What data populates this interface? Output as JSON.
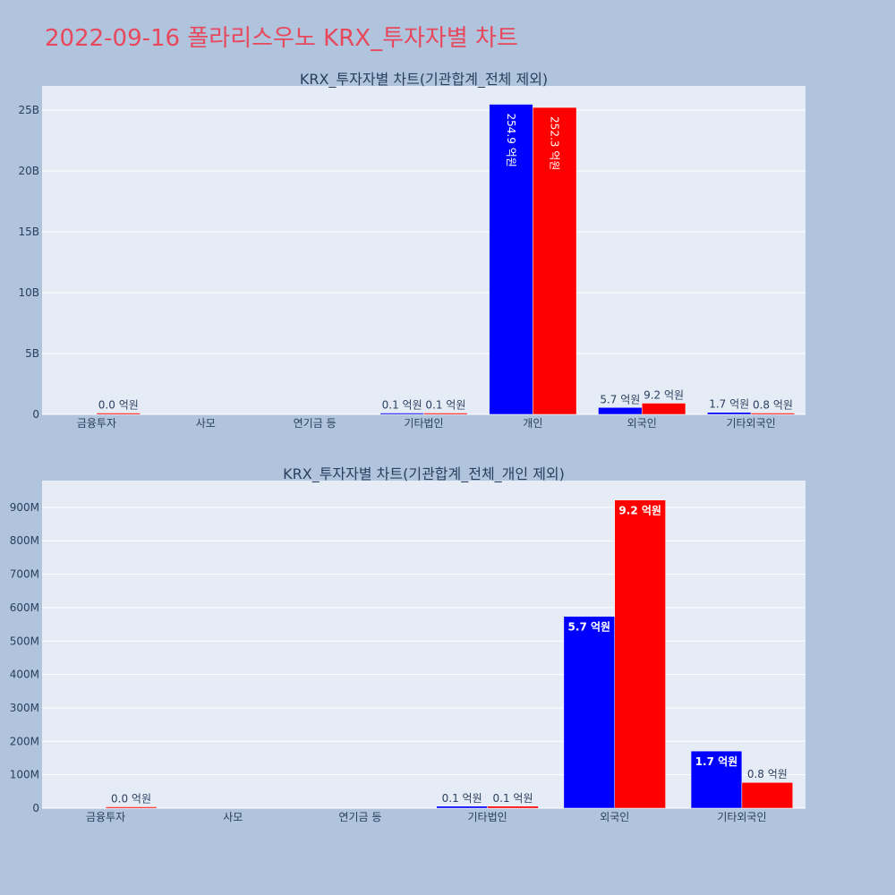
{
  "title": "2022-09-16 폴라리스우노 KRX_투자자별 차트",
  "colors": {
    "buy": "#0000ff",
    "sell": "#ff0000",
    "plot_bg": "#e5ecf6",
    "page_bg": "#b0c4de",
    "title": "#e8485c"
  },
  "chart_data": [
    {
      "type": "bar",
      "title": "KRX_투자자별 차트(기관합계_전체 제외)",
      "categories": [
        "금융투자",
        "사모",
        "연기금 등",
        "기타법인",
        "개인",
        "외국인",
        "기타외국인"
      ],
      "ylim": [
        0,
        27000000000
      ],
      "yticks": [
        0,
        5000000000,
        10000000000,
        15000000000,
        20000000000,
        25000000000
      ],
      "yticklabels": [
        "0",
        "5B",
        "10B",
        "15B",
        "20B",
        "25B"
      ],
      "grid": true,
      "series": [
        {
          "values": [
            0,
            0,
            0,
            10000000,
            25490000000,
            570000000,
            170000000
          ],
          "labels": [
            "",
            "",
            "",
            "0.1 억원",
            "254.9 억원",
            "5.7 억원",
            "1.7 억원"
          ]
        },
        {
          "values": [
            4000000,
            0,
            0,
            10000000,
            25230000000,
            920000000,
            80000000
          ],
          "labels": [
            "0.0 억원",
            "",
            "",
            "0.1 억원",
            "252.3 억원",
            "9.2 억원",
            "0.8 억원"
          ]
        }
      ]
    },
    {
      "type": "bar",
      "title": "KRX_투자자별 차트(기관합계_전체_개인 제외)",
      "categories": [
        "금융투자",
        "사모",
        "연기금 등",
        "기타법인",
        "외국인",
        "기타외국인"
      ],
      "ylim": [
        0,
        980000000
      ],
      "yticks": [
        0,
        100000000,
        200000000,
        300000000,
        400000000,
        500000000,
        600000000,
        700000000,
        800000000,
        900000000
      ],
      "yticklabels": [
        "0",
        "100M",
        "200M",
        "300M",
        "400M",
        "500M",
        "600M",
        "700M",
        "800M",
        "900M"
      ],
      "grid": true,
      "series": [
        {
          "values": [
            0,
            0,
            0,
            6000000,
            574000000,
            171000000
          ],
          "labels": [
            "",
            "",
            "",
            "0.1 억원",
            "5.7 억원",
            "1.7 억원"
          ]
        },
        {
          "values": [
            4000000,
            0,
            0,
            6000000,
            922000000,
            77000000
          ],
          "labels": [
            "0.0 억원",
            "",
            "",
            "0.1 억원",
            "9.2 억원",
            "0.8 억원"
          ]
        }
      ]
    }
  ]
}
